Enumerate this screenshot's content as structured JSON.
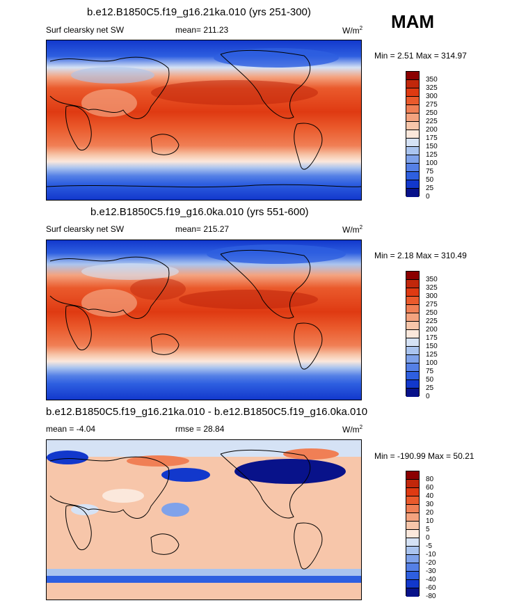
{
  "season": "MAM",
  "panels": [
    {
      "title": "b.e12.B1850C5.f19_g16.21ka.010 (yrs 251-300)",
      "variable": "Surf clearsky net SW",
      "stat1": "mean= 211.23",
      "stat2": "",
      "units": "W/m",
      "units_sup": "2",
      "minmax": "Min =   2.51 Max = 314.97",
      "colorbar_labels": [
        "350",
        "325",
        "300",
        "275",
        "250",
        "225",
        "200",
        "175",
        "150",
        "125",
        "100",
        "75",
        "50",
        "25",
        "0"
      ],
      "colorbar_colors": [
        "#8b0000",
        "#c1270b",
        "#df3a12",
        "#ea5a2c",
        "#f07f55",
        "#f4a37f",
        "#f7c6aa",
        "#fbe8dc",
        "#d5e2f5",
        "#aac4ef",
        "#7fa2ea",
        "#5580e6",
        "#2e5fe0",
        "#1238cc",
        "#08128a"
      ]
    },
    {
      "title": "b.e12.B1850C5.f19_g16.0ka.010 (yrs 551-600)",
      "variable": "Surf clearsky net SW",
      "stat1": "mean= 215.27",
      "stat2": "",
      "units": "W/m",
      "units_sup": "2",
      "minmax": "Min =   2.18 Max = 310.49",
      "colorbar_labels": [
        "350",
        "325",
        "300",
        "275",
        "250",
        "225",
        "200",
        "175",
        "150",
        "125",
        "100",
        "75",
        "50",
        "25",
        "0"
      ],
      "colorbar_colors": [
        "#8b0000",
        "#c1270b",
        "#df3a12",
        "#ea5a2c",
        "#f07f55",
        "#f4a37f",
        "#f7c6aa",
        "#fbe8dc",
        "#d5e2f5",
        "#aac4ef",
        "#7fa2ea",
        "#5580e6",
        "#2e5fe0",
        "#1238cc",
        "#08128a"
      ]
    },
    {
      "title": "b.e12.B1850C5.f19_g16.21ka.010 - b.e12.B1850C5.f19_g16.0ka.010",
      "variable": "",
      "stat1": "mean =  -4.04",
      "stat2": "rmse =  28.84",
      "units": "W/m",
      "units_sup": "2",
      "minmax": "Min = -190.99 Max =  50.21",
      "colorbar_labels": [
        "80",
        "60",
        "40",
        "30",
        "20",
        "10",
        "5",
        "0",
        "-5",
        "-10",
        "-20",
        "-30",
        "-40",
        "-60",
        "-80"
      ],
      "colorbar_colors": [
        "#8b0000",
        "#c1270b",
        "#df3a12",
        "#ea5a2c",
        "#f07f55",
        "#f4a37f",
        "#f7c6aa",
        "#fbe8dc",
        "#d5e2f5",
        "#aac4ef",
        "#7fa2ea",
        "#5580e6",
        "#2e5fe0",
        "#1238cc",
        "#08128a"
      ]
    }
  ]
}
